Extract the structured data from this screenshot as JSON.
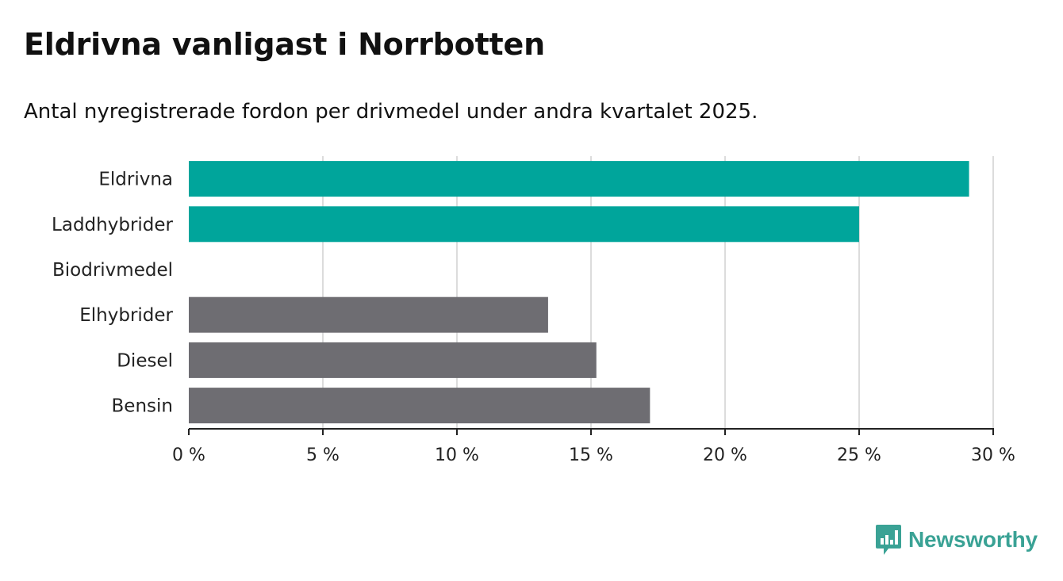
{
  "title": "Eldrivna vanligast i Norrbotten",
  "subtitle": "Antal nyregistrerade fordon per drivmedel under andra kvartalet 2025.",
  "brand": {
    "name": "Newsworthy",
    "icon": "newsworthy-logo-icon",
    "color": "#3aa295"
  },
  "chart_data": {
    "type": "bar",
    "orientation": "horizontal",
    "categories": [
      "Eldrivna",
      "Laddhybrider",
      "Biodrivmedel",
      "Elhybrider",
      "Diesel",
      "Bensin"
    ],
    "values": [
      29.1,
      25.0,
      0,
      13.4,
      15.2,
      17.2
    ],
    "colors": [
      "#00a59b",
      "#00a59b",
      "#00a59b",
      "#6e6d72",
      "#6e6d72",
      "#6e6d72"
    ],
    "xlim": [
      0,
      30
    ],
    "xticks": [
      0,
      5,
      10,
      15,
      20,
      25,
      30
    ],
    "xtick_labels": [
      "0 %",
      "5 %",
      "10 %",
      "15 %",
      "20 %",
      "25 %",
      "30 %"
    ],
    "grid": true
  }
}
